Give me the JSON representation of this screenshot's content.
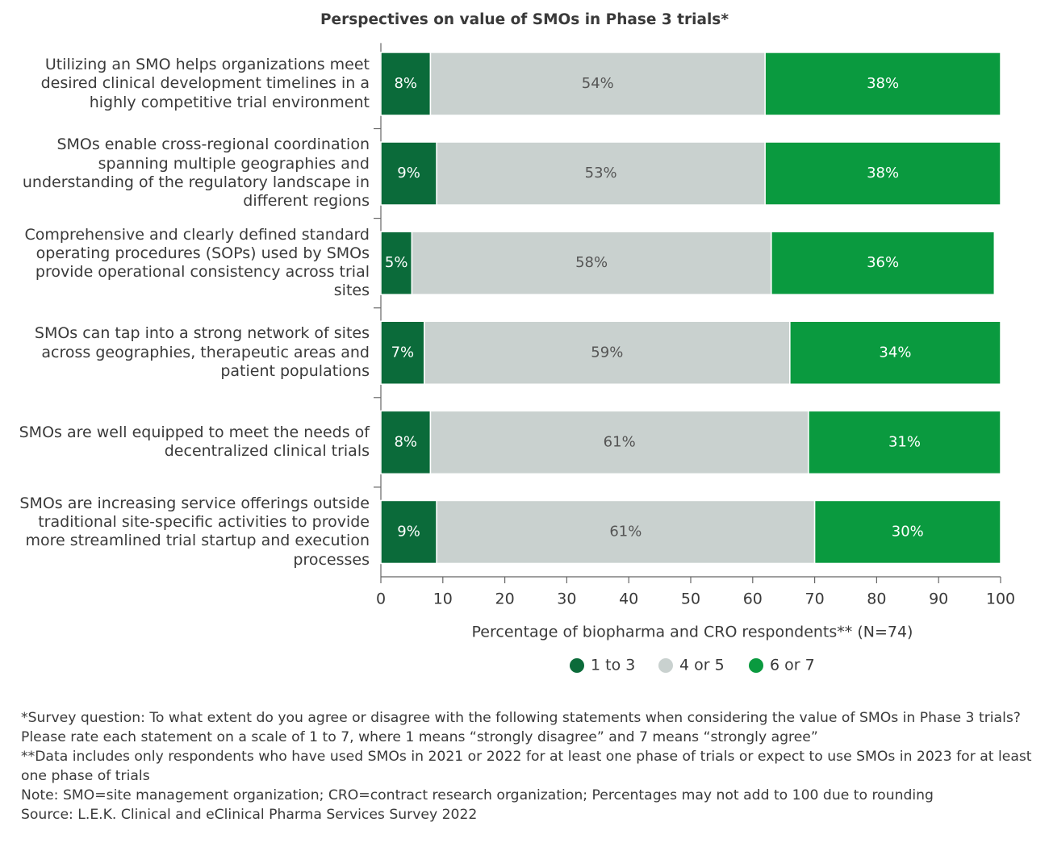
{
  "chart_data": {
    "type": "stacked-bar-horizontal",
    "title": "Perspectives on value of SMOs in Phase 3 trials*",
    "categories": [
      "Utilizing an SMO helps organizations meet desired clinical development timelines in a highly competitive trial environment",
      "SMOs enable cross-regional coordination spanning multiple geographies and understanding of the regulatory landscape in different regions",
      "Comprehensive and clearly defined standard operating procedures (SOPs) used by SMOs provide operational consistency across trial sites",
      "SMOs can tap into a strong network of sites across geographies, therapeutic areas and patient populations",
      "SMOs are well equipped to meet the needs of decentralized clinical trials",
      "SMOs are increasing service offerings outside traditional site-specific activities to provide more streamlined trial startup and execution processes"
    ],
    "series": [
      {
        "name": "1 to 3",
        "color": "#0b6b3a",
        "values": [
          8,
          9,
          5,
          7,
          8,
          9
        ],
        "value_labels": [
          "8%",
          "9%",
          "5%",
          "7%",
          "8%",
          "9%"
        ]
      },
      {
        "name": "4 or 5",
        "color": "#c9d1cf",
        "values": [
          54,
          53,
          58,
          59,
          61,
          61
        ],
        "value_labels": [
          "54%",
          "53%",
          "58%",
          "59%",
          "61%",
          "61%"
        ]
      },
      {
        "name": "6 or 7",
        "color": "#0a9a3f",
        "values": [
          38,
          38,
          36,
          34,
          31,
          30
        ],
        "value_labels": [
          "38%",
          "38%",
          "36%",
          "34%",
          "31%",
          "30%"
        ]
      }
    ],
    "xlabel": "Percentage of biopharma and CRO respondents** (N=74)",
    "xlim": [
      0,
      100
    ],
    "xticks": [
      0,
      10,
      20,
      30,
      40,
      50,
      60,
      70,
      80,
      90,
      100
    ],
    "legend": "bottom",
    "notes": [
      "*Survey question: To what extent do you agree or disagree with the following statements when considering the value of SMOs in Phase 3 trials? Please rate each statement on a scale of 1 to 7, where 1 means “strongly disagree” and 7 means “strongly agree”",
      "**Data includes only respondents who have used SMOs in 2021 or 2022 for at least one phase of trials or expect to use SMOs in 2023 for at least one phase of trials",
      "Note: SMO=site management organization; CRO=contract research organization; Percentages may not add to 100 due to rounding",
      "Source: L.E.K. Clinical and eClinical Pharma Services Survey 2022"
    ]
  }
}
